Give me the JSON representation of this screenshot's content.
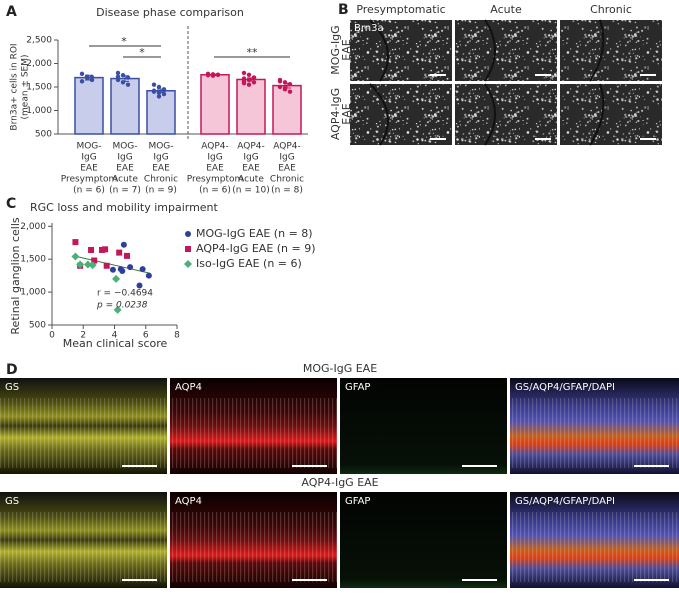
{
  "panel_labels": [
    "A",
    "B",
    "C",
    "D"
  ],
  "chart_data": [
    {
      "type": "bar",
      "title": "Disease phase comparison",
      "ylabel": [
        "Brn3a+ cells in ROI",
        "(mean ± SEM)"
      ],
      "categories": [
        [
          "MOG-",
          "IgG",
          "EAE",
          "Presymptom",
          "(n = 6)"
        ],
        [
          "MOG-",
          "IgG",
          "EAE",
          "Acute",
          "(n = 7)"
        ],
        [
          "MOG-",
          "IgG",
          "EAE",
          "Chronic",
          "(n = 9)"
        ],
        [
          "AQP4-",
          "IgG",
          "EAE",
          "Presymptom",
          "(n = 6)"
        ],
        [
          "AQP4-",
          "IgG",
          "EAE",
          "Acute",
          "(n = 10)"
        ],
        [
          "AQP4-",
          "IgG",
          "EAE",
          "Chronic",
          "(n = 8)"
        ]
      ],
      "values": [
        1700,
        1680,
        1420,
        1760,
        1660,
        1530
      ],
      "errors": [
        50,
        60,
        35,
        15,
        35,
        50
      ],
      "points": [
        [
          1780,
          1700,
          1650,
          1620,
          1720,
          1710
        ],
        [
          1800,
          1750,
          1700,
          1650,
          1600,
          1550,
          1720
        ],
        [
          1550,
          1500,
          1450,
          1400,
          1380,
          1350,
          1420,
          1300,
          1430
        ],
        [
          1780,
          1770,
          1760,
          1750,
          1740,
          1760
        ],
        [
          1800,
          1760,
          1700,
          1680,
          1650,
          1600,
          1620,
          1550,
          1700,
          1580
        ],
        [
          1650,
          1600,
          1560,
          1500,
          1450,
          1400,
          1620,
          1480
        ]
      ],
      "colors": [
        "#3a4ea3",
        "#3a4ea3",
        "#3a4ea3",
        "#c2185b",
        "#c2185b",
        "#c2185b"
      ],
      "fills": [
        "#c7cdea",
        "#c7cdea",
        "#c7cdea",
        "#f5c6d8",
        "#f5c6d8",
        "#f5c6d8"
      ],
      "ylim": [
        500,
        2500
      ],
      "yticks": [
        500,
        {
          "value": 1000,
          "label": "1,000"
        },
        {
          "value": 1500,
          "label": "1,500"
        },
        {
          "value": 2000,
          "label": "2,000"
        },
        {
          "value": 2500,
          "label": "2,500"
        }
      ],
      "annotations": [
        "*",
        "*",
        "**"
      ]
    },
    {
      "type": "scatter",
      "title": "RGC loss and mobility impairment",
      "xlabel": "Mean clinical score",
      "ylabel": "Retinal ganglion cells",
      "xlim": [
        0,
        8
      ],
      "xticks": [
        0,
        2,
        4,
        6,
        8
      ],
      "ylim": [
        500,
        2050
      ],
      "yticks": [
        500,
        {
          "value": 1000,
          "label": "1,000"
        },
        {
          "value": 1500,
          "label": "1,500"
        },
        {
          "value": 2000,
          "label": "2,000"
        }
      ],
      "series": [
        {
          "name": "MOG-IgG EAE (n = 8)",
          "color": "#2f3f9e",
          "marker": "circle",
          "x": [
            4.6,
            4.4,
            4.5,
            3.9,
            5.0,
            5.8,
            6.2,
            5.6
          ],
          "y": [
            1720,
            1350,
            1320,
            1340,
            1380,
            1350,
            1250,
            1100
          ]
        },
        {
          "name": "AQP4-IgG EAE (n = 9)",
          "color": "#c2185b",
          "marker": "square",
          "x": [
            1.5,
            2.5,
            2.7,
            3.2,
            3.4,
            4.3,
            4.8,
            1.8,
            3.5
          ],
          "y": [
            1760,
            1640,
            1480,
            1640,
            1650,
            1600,
            1550,
            1400,
            1400
          ]
        },
        {
          "name": "Iso-IgG EAE (n = 6)",
          "color": "#4caf78",
          "marker": "diamond",
          "x": [
            1.5,
            1.8,
            2.3,
            2.6,
            4.1,
            4.2
          ],
          "y": [
            1540,
            1420,
            1420,
            1410,
            1200,
            730
          ]
        }
      ],
      "trendline": {
        "x": [
          1.5,
          6.3
        ],
        "y": [
          1545,
          1285
        ],
        "color": "#3d7a40"
      },
      "annotations": [
        "r = −0.4694",
        "p = 0.0238"
      ]
    }
  ],
  "micrographs_B": {
    "column_headers": [
      "Presymptomatic",
      "Acute",
      "Chronic"
    ],
    "row_labels": [
      [
        "MOG-IgG",
        "EAE"
      ],
      [
        "AQP4-IgG",
        "EAE"
      ]
    ],
    "stain_label": "Brn3a"
  },
  "fluorescence_D": {
    "rows": [
      {
        "title": "MOG-IgG EAE",
        "channels": [
          "GS",
          "AQP4",
          "GFAP",
          "GS/AQP4/GFAP/DAPI"
        ]
      },
      {
        "title": "AQP4-IgG EAE",
        "channels": [
          "GS",
          "AQP4",
          "GFAP",
          "GS/AQP4/GFAP/DAPI"
        ]
      }
    ]
  }
}
